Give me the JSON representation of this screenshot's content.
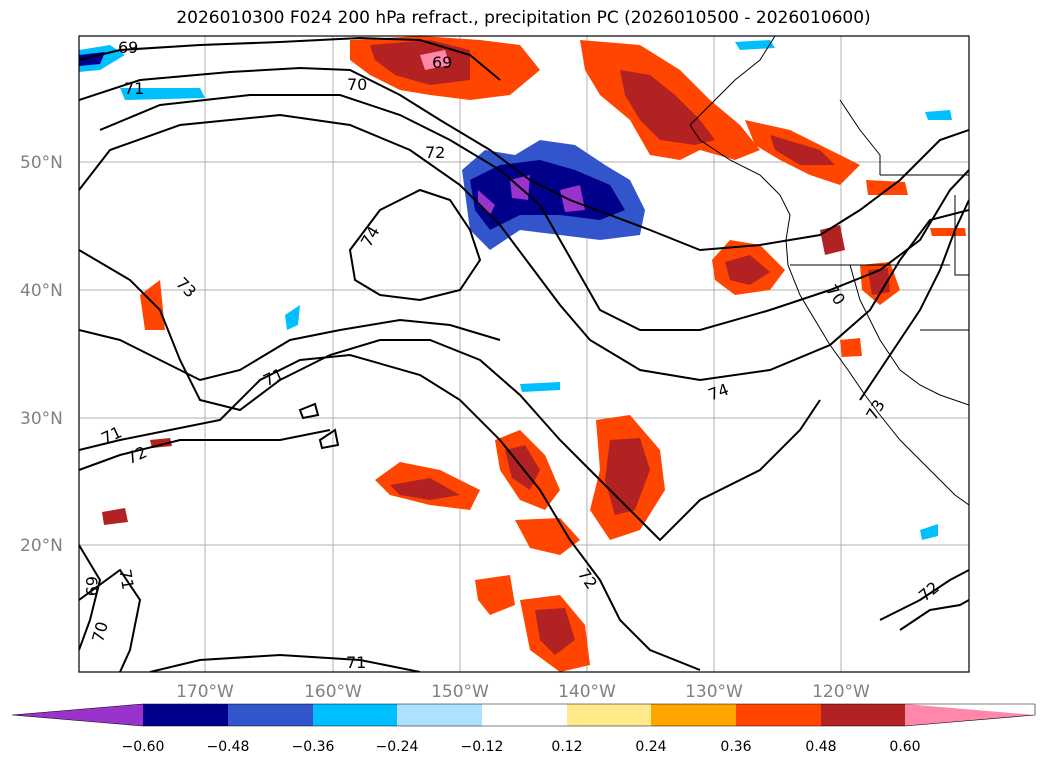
{
  "title": "2026010300 F024 200 hPa refract., precipitation PC (2026010500 - 2026010600)",
  "lat_labels": [
    "50°N",
    "40°N",
    "30°N",
    "20°N"
  ],
  "lon_labels": [
    "170°W",
    "160°W",
    "150°W",
    "140°W",
    "130°W",
    "120°W"
  ],
  "colorbar": {
    "ticks": [
      "−0.60",
      "−0.48",
      "−0.36",
      "−0.24",
      "−0.12",
      "0.12",
      "0.24",
      "0.36",
      "0.48",
      "0.60"
    ],
    "colors": [
      "#9933cc",
      "#00008b",
      "#3355cc",
      "#00bfff",
      "#b0e0ff",
      "#ffffff",
      "#ffe98a",
      "#ffa500",
      "#ff4500",
      "#b22222",
      "#ff88aa"
    ]
  },
  "contour_labels": [
    "69",
    "71",
    "70",
    "72",
    "74",
    "73",
    "71",
    "71",
    "72",
    "74",
    "72",
    "69",
    "70",
    "71",
    "71",
    "72",
    "73",
    "70",
    "69"
  ]
}
